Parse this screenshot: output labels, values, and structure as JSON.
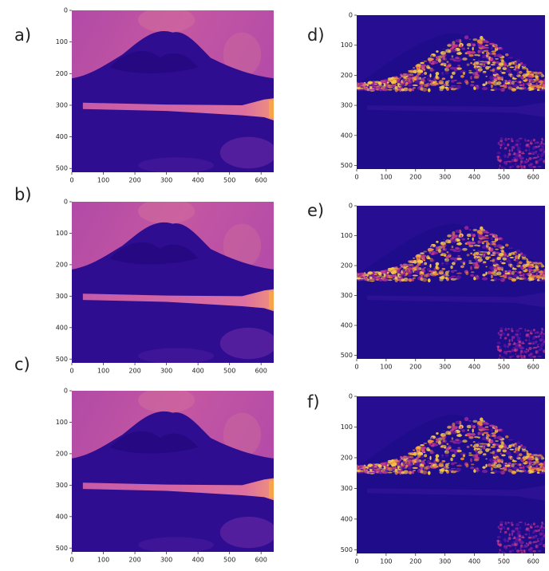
{
  "chart_data": [
    {
      "type": "image",
      "label": "a)",
      "xlim": [
        0,
        640
      ],
      "ylim": [
        512,
        0
      ],
      "xticks": [
        0,
        100,
        200,
        300,
        400,
        500,
        600
      ],
      "yticks": [
        0,
        100,
        200,
        300,
        400,
        500
      ]
    },
    {
      "type": "image",
      "label": "b)",
      "xlim": [
        0,
        640
      ],
      "ylim": [
        512,
        0
      ],
      "xticks": [
        0,
        100,
        200,
        300,
        400,
        500,
        600
      ],
      "yticks": [
        0,
        100,
        200,
        300,
        400,
        500
      ]
    },
    {
      "type": "image",
      "label": "c)",
      "xlim": [
        0,
        640
      ],
      "ylim": [
        512,
        0
      ],
      "xticks": [
        0,
        100,
        200,
        300,
        400,
        500,
        600
      ],
      "yticks": [
        0,
        100,
        200,
        300,
        400,
        500
      ]
    },
    {
      "type": "image",
      "label": "d)",
      "xlim": [
        0,
        640
      ],
      "ylim": [
        512,
        0
      ],
      "xticks": [
        0,
        100,
        200,
        300,
        400,
        500,
        600
      ],
      "yticks": [
        0,
        100,
        200,
        300,
        400,
        500
      ]
    },
    {
      "type": "image",
      "label": "e)",
      "xlim": [
        0,
        640
      ],
      "ylim": [
        512,
        0
      ],
      "xticks": [
        0,
        100,
        200,
        300,
        400,
        500,
        600
      ],
      "yticks": [
        0,
        100,
        200,
        300,
        400,
        500
      ]
    },
    {
      "type": "image",
      "label": "f)",
      "xlim": [
        0,
        640
      ],
      "ylim": [
        512,
        0
      ],
      "xticks": [
        0,
        100,
        200,
        300,
        400,
        500,
        600
      ],
      "yticks": [
        0,
        100,
        200,
        300,
        400,
        500
      ]
    }
  ]
}
